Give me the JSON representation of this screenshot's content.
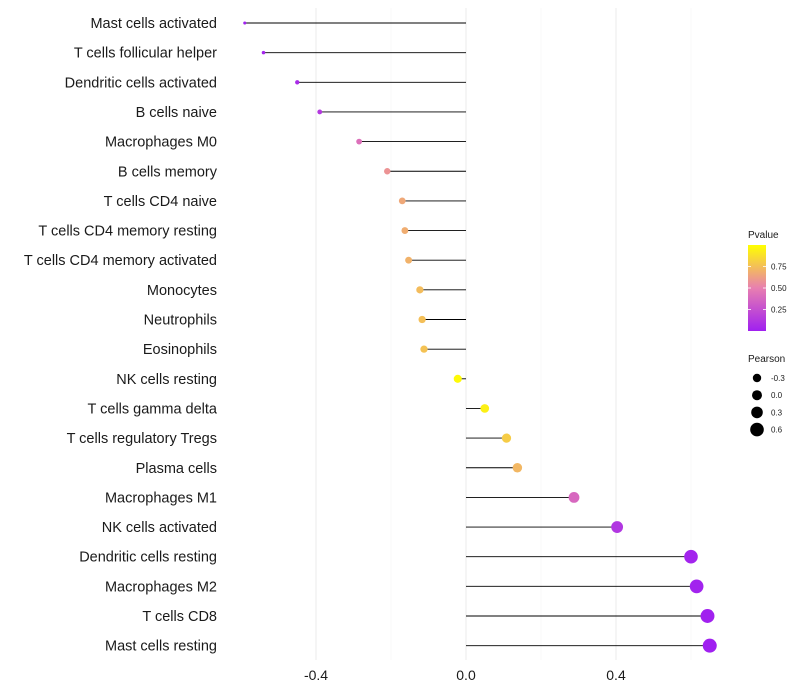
{
  "chart_data": {
    "type": "lollipop",
    "title": "",
    "xlabel": "",
    "ylabel": "",
    "xlim": [
      -0.6,
      0.65
    ],
    "x_ticks": [
      -0.4,
      0.0,
      0.4
    ],
    "x_tick_labels": [
      "-0.4",
      "0.0",
      "0.4"
    ],
    "grid": true,
    "categories": [
      "Mast cells activated",
      "T cells follicular helper",
      "Dendritic cells activated",
      "B cells naive",
      "Macrophages M0",
      "B cells memory",
      "T cells CD4 naive",
      "T cells CD4 memory resting",
      "T cells CD4 memory activated",
      "Monocytes",
      "Neutrophils",
      "Eosinophils",
      "NK cells resting",
      "T cells gamma delta",
      "T cells regulatory  Tregs ",
      "Plasma cells",
      "Macrophages M1",
      "NK cells activated",
      "Dendritic cells resting",
      "Macrophages M2",
      "T cells CD8",
      "Mast cells resting"
    ],
    "pearson": [
      -0.59,
      -0.54,
      -0.45,
      -0.39,
      -0.285,
      -0.21,
      -0.17,
      -0.163,
      -0.153,
      -0.123,
      -0.117,
      -0.112,
      -0.022,
      0.05,
      0.108,
      0.137,
      0.288,
      0.403,
      0.6,
      0.615,
      0.644,
      0.65
    ],
    "pvalue": [
      0.01,
      0.03,
      0.06,
      0.13,
      0.42,
      0.58,
      0.66,
      0.68,
      0.7,
      0.74,
      0.75,
      0.76,
      0.98,
      0.94,
      0.8,
      0.72,
      0.38,
      0.12,
      0.02,
      0.015,
      0.005,
      0.002
    ],
    "legend": {
      "color": {
        "title": "Pvalue",
        "ticks": [
          0.25,
          0.5,
          0.75
        ],
        "tick_labels": [
          "0.25",
          "0.50",
          "0.75"
        ],
        "range": [
          0,
          1
        ],
        "low_color": "#a020f0",
        "mid_color": "#e87fb0",
        "high_color": "#ffff00"
      },
      "size": {
        "title": "Pearson",
        "values": [
          -0.3,
          0.0,
          0.3,
          0.6
        ],
        "labels": [
          "-0.3",
          "0.0",
          "0.3",
          "0.6"
        ]
      },
      "placement": "right"
    }
  }
}
